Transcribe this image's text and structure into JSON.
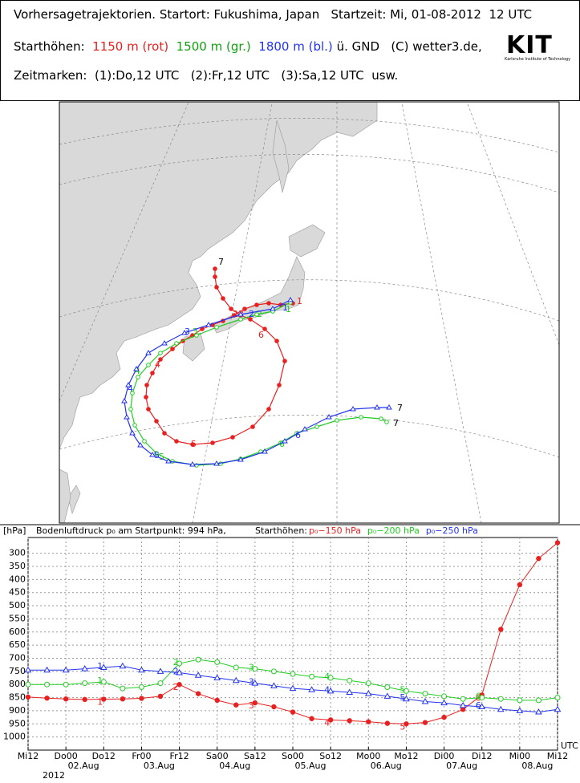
{
  "header": {
    "line1": "Vorhersagetrajektorien. Startort: Fukushima, Japan   Startzeit: Mi, 01-08-2012  12 UTC",
    "line2_label": "Starthöhen:",
    "red": "1150 m (rot)",
    "green": "1500 m (gr.)",
    "blue": "1800 m (bl.)",
    "line2_tail": "ü. GND",
    "copyright": "(C) wetter3.de,",
    "logo": "KIT",
    "logo_sub": "Karlsruhe Institute of Technology",
    "line3": "Zeitmarken:  (1):Do,12 UTC   (2):Fr,12 UTC   (3):Sa,12 UTC  usw."
  },
  "map_marks": [
    "1",
    "2",
    "3",
    "4",
    "5",
    "6",
    "7"
  ],
  "chart_data": {
    "type": "line",
    "unit_label": "[hPa]",
    "subtitle": "Bodenluftdruck p₀ am Startpunkt: 994 hPa,",
    "legend_label": "Starthöhen:",
    "x_unit": "UTC",
    "categories": [
      "Mi12",
      null,
      "Do00",
      null,
      "Do12",
      null,
      "Fr00",
      null,
      "Fr12",
      null,
      "Sa00",
      null,
      "Sa12",
      null,
      "So00",
      null,
      "So12",
      null,
      "Mo00",
      null,
      "Mo12",
      null,
      "Di00",
      null,
      "Di12",
      null,
      "Mi00",
      null,
      "Mi12"
    ],
    "date_labels": [
      null,
      null,
      "02.Aug",
      null,
      null,
      null,
      "03.Aug",
      null,
      null,
      null,
      "04.Aug",
      null,
      null,
      null,
      "05.Aug",
      null,
      null,
      null,
      "06.Aug",
      null,
      null,
      null,
      "07.Aug",
      null,
      null,
      null,
      "08.Aug",
      null,
      null
    ],
    "year_label": "2012",
    "time_marks": [
      "1",
      "2",
      "3",
      "4",
      "5",
      "6"
    ],
    "series": [
      {
        "name": "p₀−150 hPa",
        "color": "#e82020",
        "values": [
          848,
          852,
          855,
          857,
          856,
          855,
          853,
          845,
          800,
          835,
          860,
          878,
          870,
          885,
          905,
          930,
          935,
          938,
          942,
          948,
          950,
          945,
          925,
          895,
          840,
          590,
          420,
          320,
          260
        ]
      },
      {
        "name": "p₀−200 hPa",
        "color": "#22cc22",
        "values": [
          800,
          800,
          800,
          795,
          790,
          815,
          810,
          795,
          720,
          705,
          715,
          735,
          740,
          750,
          760,
          770,
          775,
          785,
          795,
          810,
          825,
          835,
          845,
          855,
          850,
          855,
          860,
          860,
          850
        ]
      },
      {
        "name": "p₀−250 hPa",
        "color": "#2233ee",
        "values": [
          745,
          745,
          745,
          740,
          735,
          730,
          745,
          750,
          755,
          765,
          775,
          785,
          795,
          805,
          815,
          820,
          825,
          830,
          835,
          845,
          855,
          865,
          870,
          880,
          885,
          895,
          900,
          905,
          895
        ]
      }
    ],
    "ylim": [
      1050,
      240
    ],
    "yticks": [
      300,
      350,
      400,
      450,
      500,
      550,
      600,
      650,
      700,
      750,
      800,
      850,
      900,
      950,
      1000
    ],
    "grid": true
  }
}
